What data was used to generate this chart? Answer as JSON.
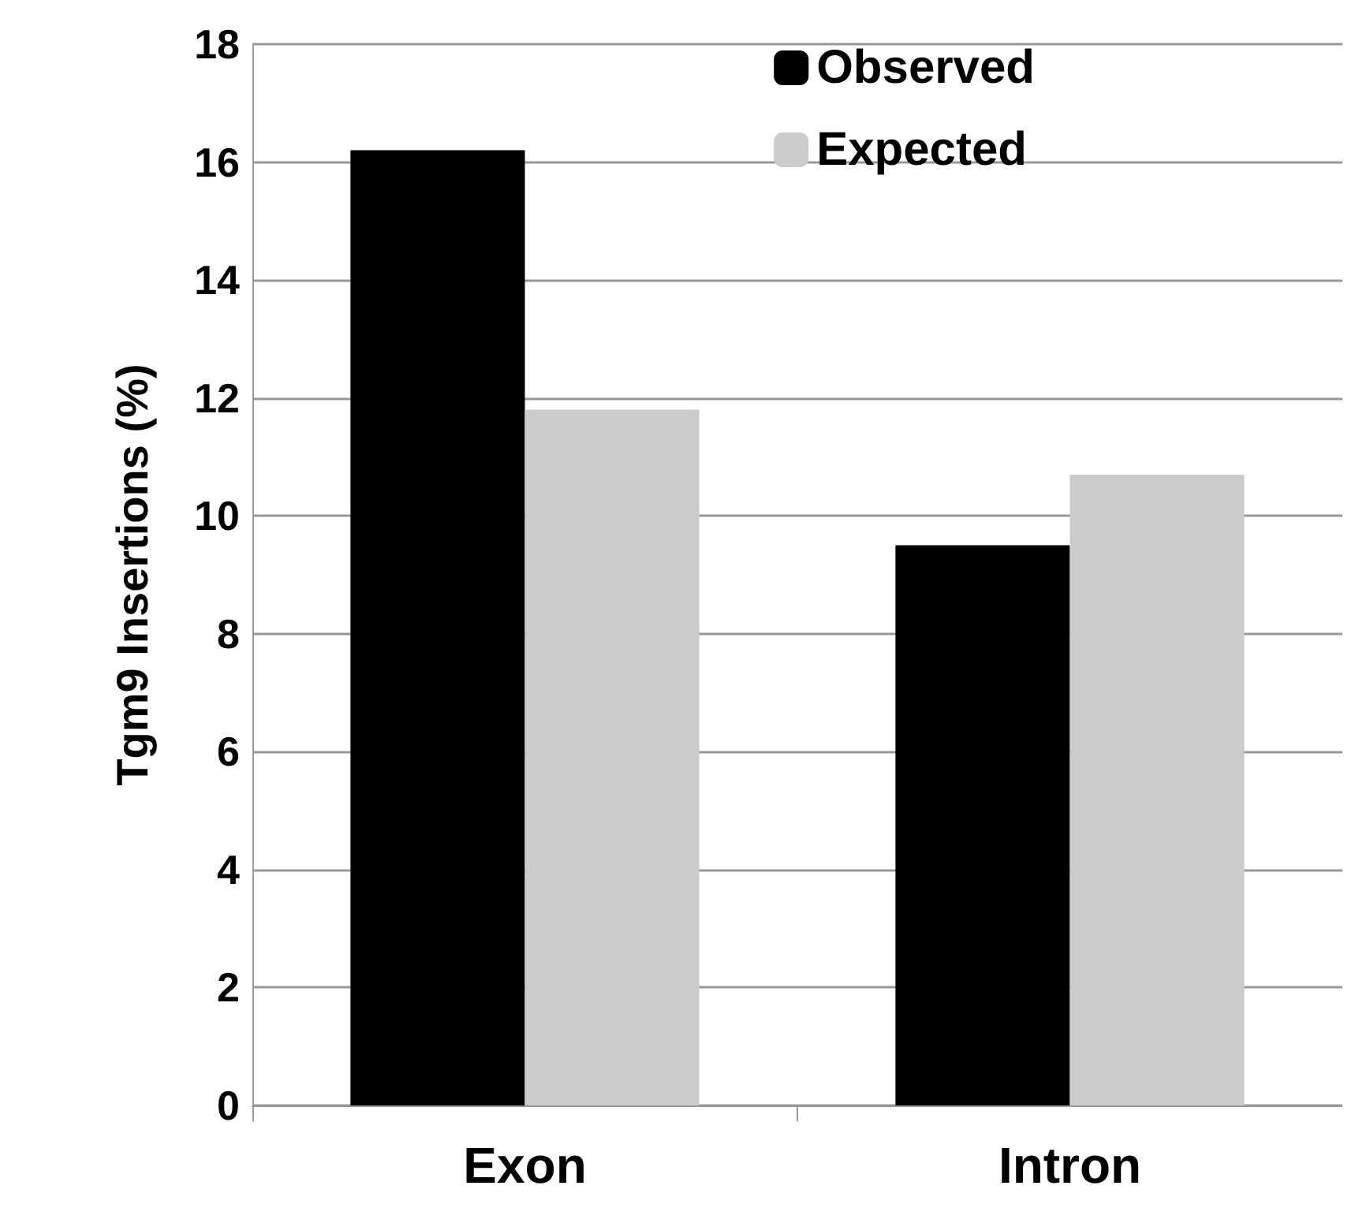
{
  "chart_data": {
    "type": "bar",
    "ylabel": "Tgm9 Insertions (%)",
    "categories": [
      "Exon",
      "Intron"
    ],
    "series": [
      {
        "name": "Observed",
        "color": "#000000",
        "values": [
          16.2,
          9.5
        ]
      },
      {
        "name": "Expected",
        "color": "#cccccc",
        "values": [
          11.8,
          10.7
        ]
      }
    ],
    "ylim": [
      0,
      18
    ],
    "yticks": [
      0,
      2,
      4,
      6,
      8,
      10,
      12,
      14,
      16,
      18
    ],
    "grid": "y",
    "legend": "top right"
  }
}
